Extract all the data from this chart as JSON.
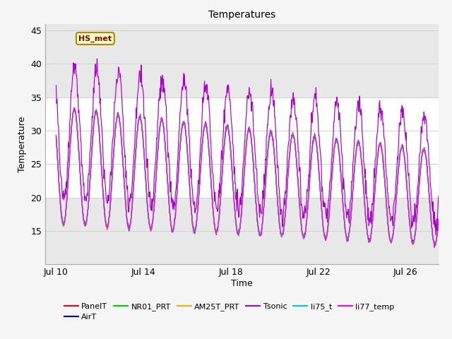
{
  "title": "Temperatures",
  "xlabel": "Time",
  "ylabel": "Temperature",
  "ylim": [
    10,
    46
  ],
  "yticks": [
    15,
    20,
    25,
    30,
    35,
    40,
    45
  ],
  "annotation_text": "HS_met",
  "background_color": "#f5f5f5",
  "plot_bg_color": "#ffffff",
  "legend_entries": [
    "PanelT",
    "AirT",
    "NR01_PRT",
    "AM25T_PRT",
    "Tsonic",
    "li75_t",
    "li77_temp"
  ],
  "line_colors": {
    "PanelT": "#ff0000",
    "AirT": "#0000dd",
    "NR01_PRT": "#00cc00",
    "AM25T_PRT": "#ffaa00",
    "Tsonic": "#aa00cc",
    "li75_t": "#00cccc",
    "li77_temp": "#ff00ff"
  },
  "xstart_day": 9.5,
  "xend_day": 27.5,
  "xticks": [
    10,
    14,
    18,
    22,
    26
  ],
  "xtick_labels": [
    "Jul 10",
    "Jul 14",
    "Jul 18",
    "Jul 22",
    "Jul 26"
  ],
  "gray_band_ranges": [
    [
      10,
      20
    ],
    [
      35,
      46
    ]
  ],
  "gray_band_color": "#e8e8e8"
}
